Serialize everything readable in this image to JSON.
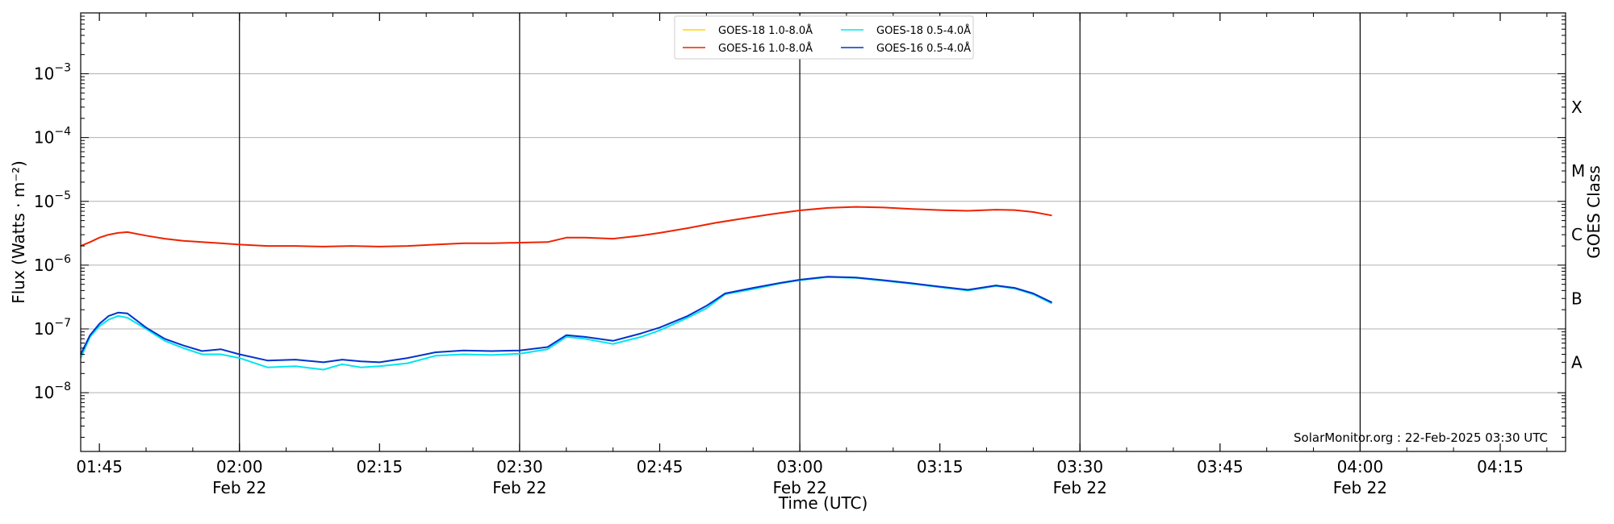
{
  "chart_data": {
    "type": "line",
    "ylabel": "Flux (Watts · m⁻²)",
    "xlabel": "Time (UTC)",
    "right_axis_label": "GOES Class",
    "credit": "SolarMonitor.org : 22-Feb-2025 03:30 UTC",
    "x_unit": "UTC time on 22-Feb-2025",
    "xlim": [
      "01:43",
      "04:22"
    ],
    "ylim": [
      1.2e-09,
      0.009
    ],
    "y_scale": "log",
    "grid": "horizontal at each decade",
    "vertical_markers": [
      "02:00",
      "02:30",
      "03:00",
      "03:30",
      "04:00"
    ],
    "y_ticks": [
      {
        "value": 1e-08,
        "label": "10",
        "exp": "−8"
      },
      {
        "value": 1e-07,
        "label": "10",
        "exp": "−7"
      },
      {
        "value": 1e-06,
        "label": "10",
        "exp": "−6"
      },
      {
        "value": 1e-05,
        "label": "10",
        "exp": "−5"
      },
      {
        "value": 0.0001,
        "label": "10",
        "exp": "−4"
      },
      {
        "value": 0.001,
        "label": "10",
        "exp": "−3"
      }
    ],
    "x_ticks": [
      {
        "time": "01:45",
        "label": "01:45",
        "sublabel": ""
      },
      {
        "time": "02:00",
        "label": "02:00",
        "sublabel": "Feb 22"
      },
      {
        "time": "02:15",
        "label": "02:15",
        "sublabel": ""
      },
      {
        "time": "02:30",
        "label": "02:30",
        "sublabel": "Feb 22"
      },
      {
        "time": "02:45",
        "label": "02:45",
        "sublabel": ""
      },
      {
        "time": "03:00",
        "label": "03:00",
        "sublabel": "Feb 22"
      },
      {
        "time": "03:15",
        "label": "03:15",
        "sublabel": ""
      },
      {
        "time": "03:30",
        "label": "03:30",
        "sublabel": "Feb 22"
      },
      {
        "time": "03:45",
        "label": "03:45",
        "sublabel": ""
      },
      {
        "time": "04:00",
        "label": "04:00",
        "sublabel": "Feb 22"
      },
      {
        "time": "04:15",
        "label": "04:15",
        "sublabel": ""
      }
    ],
    "goes_classes": [
      {
        "label": "X",
        "value": 0.0003
      },
      {
        "label": "M",
        "value": 3e-05
      },
      {
        "label": "C",
        "value": 3e-06
      },
      {
        "label": "B",
        "value": 3e-07
      },
      {
        "label": "A",
        "value": 3e-08
      }
    ],
    "legend_position": "top-center",
    "series": [
      {
        "name": "GOES-18 1.0-8.0Å",
        "color": "#ffd700",
        "x": [],
        "y": []
      },
      {
        "name": "GOES-16 1.0-8.0Å",
        "color": "#ee2200",
        "x": [
          "01:43",
          "01:44",
          "01:45",
          "01:46",
          "01:47",
          "01:48",
          "01:50",
          "01:52",
          "01:54",
          "01:56",
          "01:58",
          "02:00",
          "02:03",
          "02:06",
          "02:09",
          "02:12",
          "02:15",
          "02:18",
          "02:21",
          "02:24",
          "02:27",
          "02:30",
          "02:33",
          "02:35",
          "02:37",
          "02:40",
          "02:43",
          "02:45",
          "02:48",
          "02:51",
          "02:54",
          "02:57",
          "03:00",
          "03:03",
          "03:06",
          "03:09",
          "03:12",
          "03:15",
          "03:18",
          "03:21",
          "03:23",
          "03:25",
          "03:27"
        ],
        "y": [
          2e-06,
          2.3e-06,
          2.7e-06,
          3e-06,
          3.2e-06,
          3.3e-06,
          2.9e-06,
          2.6e-06,
          2.4e-06,
          2.3e-06,
          2.2e-06,
          2.1e-06,
          2e-06,
          2e-06,
          1.95e-06,
          2e-06,
          1.95e-06,
          2e-06,
          2.1e-06,
          2.2e-06,
          2.2e-06,
          2.25e-06,
          2.3e-06,
          2.7e-06,
          2.7e-06,
          2.6e-06,
          2.9e-06,
          3.2e-06,
          3.8e-06,
          4.6e-06,
          5.4e-06,
          6.3e-06,
          7.2e-06,
          7.9e-06,
          8.2e-06,
          8e-06,
          7.6e-06,
          7.3e-06,
          7.1e-06,
          7.4e-06,
          7.3e-06,
          6.8e-06,
          6e-06
        ]
      },
      {
        "name": "GOES-18 0.5-4.0Å",
        "color": "#00e5ee",
        "x": [
          "01:43",
          "01:44",
          "01:45",
          "01:46",
          "01:47",
          "01:48",
          "01:50",
          "01:52",
          "01:54",
          "01:56",
          "01:58",
          "02:00",
          "02:03",
          "02:06",
          "02:09",
          "02:11",
          "02:13",
          "02:15",
          "02:18",
          "02:21",
          "02:24",
          "02:27",
          "02:30",
          "02:33",
          "02:35",
          "02:37",
          "02:40",
          "02:43",
          "02:45",
          "02:48",
          "02:50",
          "02:52",
          "02:55",
          "02:58",
          "03:00",
          "03:03",
          "03:06",
          "03:09",
          "03:12",
          "03:15",
          "03:18",
          "03:21",
          "03:23",
          "03:25",
          "03:27"
        ],
        "y": [
          3.5e-08,
          7.5e-08,
          1.1e-07,
          1.4e-07,
          1.6e-07,
          1.5e-07,
          1e-07,
          6.5e-08,
          5e-08,
          4e-08,
          4e-08,
          3.5e-08,
          2.5e-08,
          2.6e-08,
          2.3e-08,
          2.8e-08,
          2.5e-08,
          2.6e-08,
          2.9e-08,
          3.8e-08,
          4e-08,
          3.9e-08,
          4.1e-08,
          4.8e-08,
          7.5e-08,
          7e-08,
          5.8e-08,
          7.5e-08,
          9.5e-08,
          1.5e-07,
          2.1e-07,
          3.5e-07,
          4.2e-07,
          5.2e-07,
          5.8e-07,
          6.5e-07,
          6.3e-07,
          5.7e-07,
          5.1e-07,
          4.5e-07,
          4e-07,
          4.7e-07,
          4.3e-07,
          3.5e-07,
          2.5e-07
        ]
      },
      {
        "name": "GOES-16 0.5-4.0Å",
        "color": "#0033cc",
        "x": [
          "01:43",
          "01:44",
          "01:45",
          "01:46",
          "01:47",
          "01:48",
          "01:50",
          "01:52",
          "01:54",
          "01:56",
          "01:58",
          "02:00",
          "02:03",
          "02:06",
          "02:09",
          "02:11",
          "02:13",
          "02:15",
          "02:18",
          "02:21",
          "02:24",
          "02:27",
          "02:30",
          "02:33",
          "02:35",
          "02:37",
          "02:40",
          "02:43",
          "02:45",
          "02:48",
          "02:50",
          "02:52",
          "02:55",
          "02:58",
          "03:00",
          "03:03",
          "03:06",
          "03:09",
          "03:12",
          "03:15",
          "03:18",
          "03:21",
          "03:23",
          "03:25",
          "03:27"
        ],
        "y": [
          4e-08,
          8e-08,
          1.2e-07,
          1.6e-07,
          1.8e-07,
          1.75e-07,
          1.05e-07,
          7e-08,
          5.5e-08,
          4.5e-08,
          4.8e-08,
          4e-08,
          3.2e-08,
          3.3e-08,
          3e-08,
          3.3e-08,
          3.1e-08,
          3e-08,
          3.5e-08,
          4.3e-08,
          4.6e-08,
          4.5e-08,
          4.6e-08,
          5.2e-08,
          8e-08,
          7.5e-08,
          6.5e-08,
          8.5e-08,
          1.05e-07,
          1.6e-07,
          2.3e-07,
          3.6e-07,
          4.4e-07,
          5.3e-07,
          5.9e-07,
          6.6e-07,
          6.4e-07,
          5.8e-07,
          5.2e-07,
          4.6e-07,
          4.1e-07,
          4.8e-07,
          4.4e-07,
          3.6e-07,
          2.6e-07
        ]
      }
    ]
  }
}
